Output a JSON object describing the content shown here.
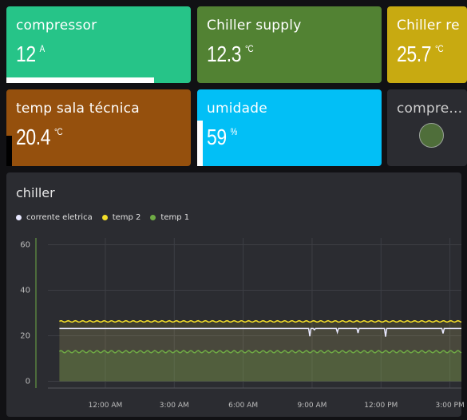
{
  "cards": {
    "compressor": {
      "label": "compressor",
      "value": "12",
      "unit": "A",
      "bg": "#26c488",
      "bar_color": "#ffffff",
      "bar_level": 0.8
    },
    "chiller_supply": {
      "label": "Chiller supply",
      "value": "12.3",
      "unit": "°C",
      "bg": "#528233"
    },
    "chiller_return": {
      "label": "Chiller re",
      "value": "25.7",
      "unit": "°C",
      "bg": "#c8aa11"
    },
    "temp_sala": {
      "label": "temp sala técnica",
      "value": "20.4",
      "unit": "°C",
      "bg": "#95500d",
      "bar_color": "#000000",
      "bar_level": 0.4
    },
    "umidade": {
      "label": "umidade",
      "value": "59",
      "unit": "%",
      "bg": "#02bff6",
      "bar_color": "#ffffff",
      "bar_level": 0.59
    },
    "compre_status": {
      "label": "compre...",
      "bg": "#2b2c31",
      "led_color": "#4f6e3a",
      "led_icon": "status-led-icon"
    }
  },
  "chart": {
    "title": "chiller",
    "legend": [
      {
        "name": "corrente eletrica",
        "color": "#e8e8ff"
      },
      {
        "name": "temp 2",
        "color": "#f3de29"
      },
      {
        "name": "temp 1",
        "color": "#6fab45"
      }
    ]
  },
  "chart_data": {
    "type": "area",
    "title": "chiller",
    "xlabel": "",
    "ylabel": "",
    "ylim": [
      -3,
      63
    ],
    "yticks": [
      0,
      20,
      40,
      60
    ],
    "x_tick_labels": [
      "12:00 AM",
      "3:00 AM",
      "6:00 AM",
      "9:00 AM",
      "12:00 PM",
      "3:00 PM"
    ],
    "x_hours_range": [
      21.5,
      39.5
    ],
    "x_tick_hours": [
      24,
      27,
      30,
      33,
      36,
      39
    ],
    "grid": true,
    "legend_position": "top-left",
    "series": [
      {
        "name": "corrente eletrica",
        "color": "#e8e8ff",
        "baseline": 23.2,
        "dips": [
          [
            32.9,
            19.8
          ],
          [
            33.1,
            22.6
          ],
          [
            34.1,
            21.5
          ],
          [
            35.0,
            21.2
          ],
          [
            36.2,
            19.6
          ],
          [
            38.7,
            21.0
          ]
        ]
      },
      {
        "name": "temp 2",
        "color": "#f3de29",
        "baseline": 26.3,
        "ripple": 0.3
      },
      {
        "name": "temp 1",
        "color": "#6fab45",
        "baseline": 13.0,
        "ripple": 0.5
      }
    ]
  }
}
